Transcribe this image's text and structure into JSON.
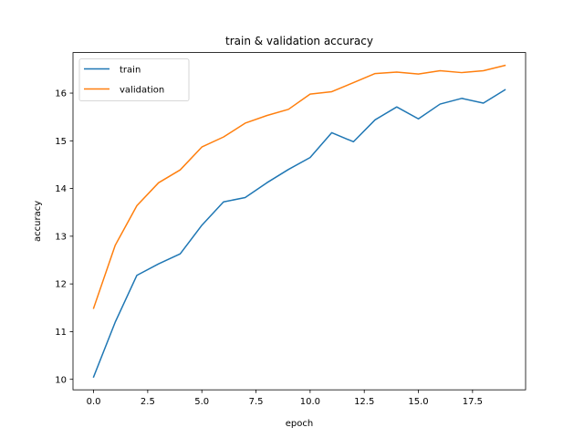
{
  "chart_data": {
    "type": "line",
    "title": "train & validation accuracy",
    "xlabel": "epoch",
    "ylabel": "accuracy",
    "xlim": [
      -0.95,
      19.95
    ],
    "ylim": [
      9.78,
      16.85
    ],
    "x_ticks": [
      0.0,
      2.5,
      5.0,
      7.5,
      10.0,
      12.5,
      15.0,
      17.5
    ],
    "x_tick_labels": [
      "0.0",
      "2.5",
      "5.0",
      "7.5",
      "10.0",
      "12.5",
      "15.0",
      "17.5"
    ],
    "y_ticks": [
      10,
      11,
      12,
      13,
      14,
      15,
      16
    ],
    "y_tick_labels": [
      "10",
      "11",
      "12",
      "13",
      "14",
      "15",
      "16"
    ],
    "grid": false,
    "legend_position": "upper-left",
    "x": [
      0,
      1,
      2,
      3,
      4,
      5,
      6,
      7,
      8,
      9,
      10,
      11,
      12,
      13,
      14,
      15,
      16,
      17,
      18,
      19
    ],
    "series": [
      {
        "name": "train",
        "color": "#1f77b4",
        "values": [
          10.05,
          11.2,
          12.18,
          12.42,
          12.63,
          13.23,
          13.72,
          13.81,
          14.12,
          14.4,
          14.65,
          15.17,
          14.98,
          15.44,
          15.71,
          15.46,
          15.77,
          15.89,
          15.79,
          16.07
        ]
      },
      {
        "name": "validation",
        "color": "#ff7f0e",
        "values": [
          11.49,
          12.81,
          13.64,
          14.12,
          14.39,
          14.87,
          15.08,
          15.37,
          15.53,
          15.66,
          15.98,
          16.03,
          16.22,
          16.41,
          16.44,
          16.4,
          16.47,
          16.43,
          16.47,
          16.58
        ]
      }
    ]
  }
}
